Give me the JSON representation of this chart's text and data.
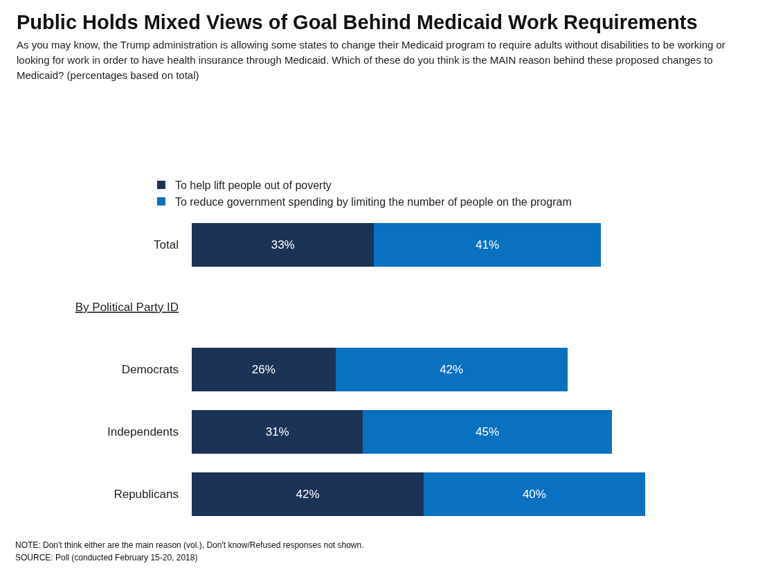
{
  "chart_data": {
    "type": "bar",
    "orientation": "horizontal",
    "stacked": true,
    "title": "Public Holds Mixed Views of Goal Behind Medicaid Work Requirements",
    "subtitle": "As you may know, the Trump administration is allowing some states to change their Medicaid program to require adults without disabilities to be working or looking for work in order to have health insurance through Medicaid. Which of these do you think is the MAIN reason behind these proposed changes to Medicaid? (percentages based on total)",
    "categories": [
      "Total",
      "By Political Party ID",
      "Democrats",
      "Independents",
      "Republicans"
    ],
    "series": [
      {
        "name": "To help lift people out of poverty",
        "color": "#1b3356",
        "values": [
          33,
          null,
          26,
          31,
          42
        ],
        "value_labels": [
          "33%",
          null,
          "26%",
          "31%",
          "42%"
        ]
      },
      {
        "name": "To reduce government spending by limiting the number of people on the program",
        "color": "#0a70c0",
        "values": [
          41,
          null,
          42,
          45,
          40
        ],
        "value_labels": [
          "41%",
          null,
          "42%",
          "45%",
          "40%"
        ]
      }
    ],
    "legend": "top left",
    "grid": false,
    "annotations": [
      "NOTE: Don't think either are the main reason (vol.), Don't know/Refused responses not shown.",
      "SOURCE: Poll (conducted February 15-20, 2018)"
    ]
  }
}
